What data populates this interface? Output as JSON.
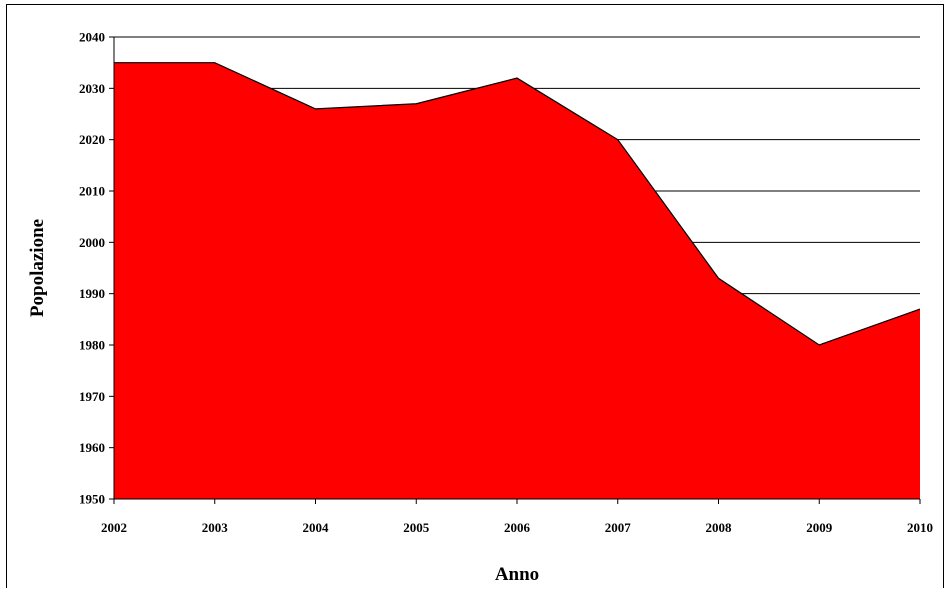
{
  "chart_data": {
    "type": "area",
    "title": "",
    "xlabel": "Anno",
    "ylabel": "Popolazione",
    "x": [
      2002,
      2003,
      2004,
      2005,
      2006,
      2007,
      2008,
      2009,
      2010
    ],
    "series": [
      {
        "values": [
          2035,
          2035,
          2026,
          2027,
          2032,
          2020,
          1993,
          1980,
          1987
        ],
        "color": "#ff0000"
      }
    ],
    "ylim": [
      1950,
      2040
    ],
    "yticks": [
      1950,
      1960,
      1970,
      1980,
      1990,
      2000,
      2010,
      2020,
      2030,
      2040
    ],
    "xticks": [
      2002,
      2003,
      2004,
      2005,
      2006,
      2007,
      2008,
      2009,
      2010
    ],
    "grid": "horizontal",
    "legend": "none"
  }
}
